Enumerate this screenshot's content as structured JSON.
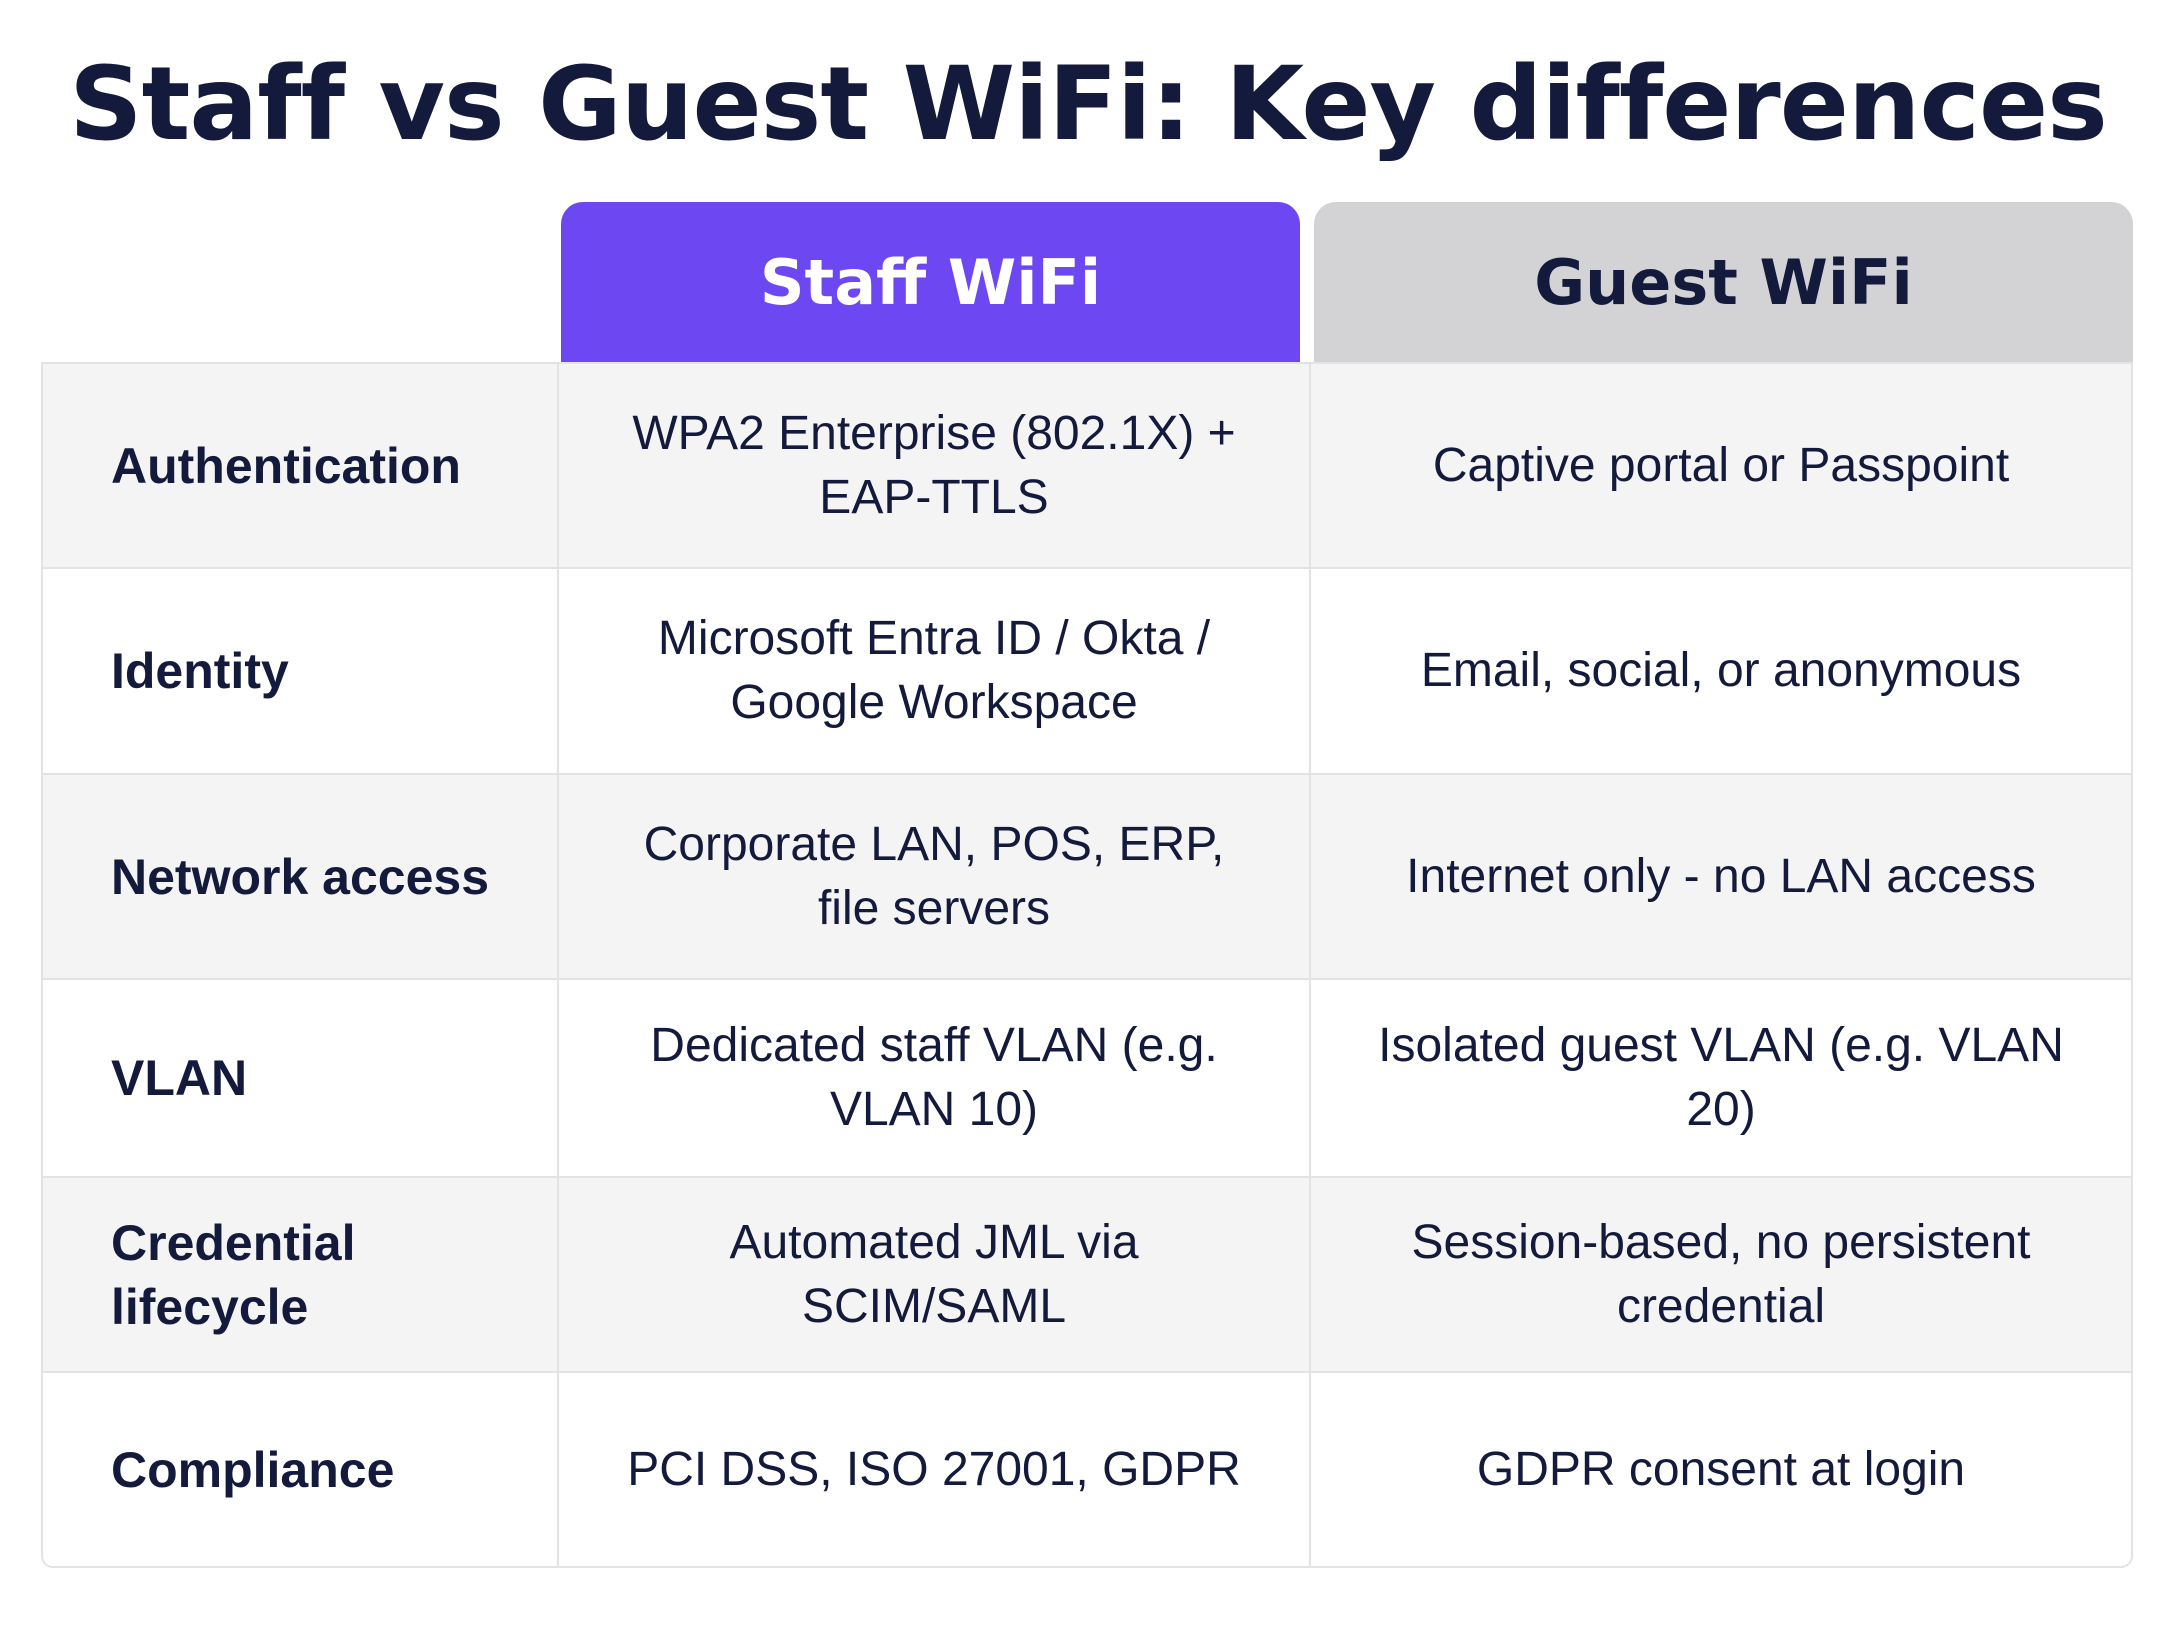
{
  "title": "Staff vs Guest WiFi: Key differences",
  "colors": {
    "staff_header_bg": "#6c47f2",
    "guest_header_bg": "#d3d3d6",
    "text_dark": "#141a3c",
    "row_shaded": "#f4f4f4"
  },
  "columns": {
    "staff": "Staff WiFi",
    "guest": "Guest WiFi"
  },
  "rows": [
    {
      "label": "Authentication",
      "staff": "WPA2 Enterprise (802.1X) + EAP-TTLS",
      "guest": "Captive portal or Passpoint"
    },
    {
      "label": "Identity",
      "staff": "Microsoft Entra ID / Okta / Google Workspace",
      "guest": "Email, social, or anonymous"
    },
    {
      "label": "Network access",
      "staff": "Corporate LAN, POS, ERP, file servers",
      "guest": "Internet only - no LAN access"
    },
    {
      "label": "VLAN",
      "staff": "Dedicated staff VLAN (e.g. VLAN 10)",
      "guest": "Isolated guest VLAN (e.g. VLAN 20)"
    },
    {
      "label": "Credential lifecycle",
      "staff": "Automated JML via SCIM/SAML",
      "guest": "Session-based, no persistent credential"
    },
    {
      "label": "Compliance",
      "staff": "PCI DSS, ISO 27001, GDPR",
      "guest": "GDPR consent at login"
    }
  ]
}
